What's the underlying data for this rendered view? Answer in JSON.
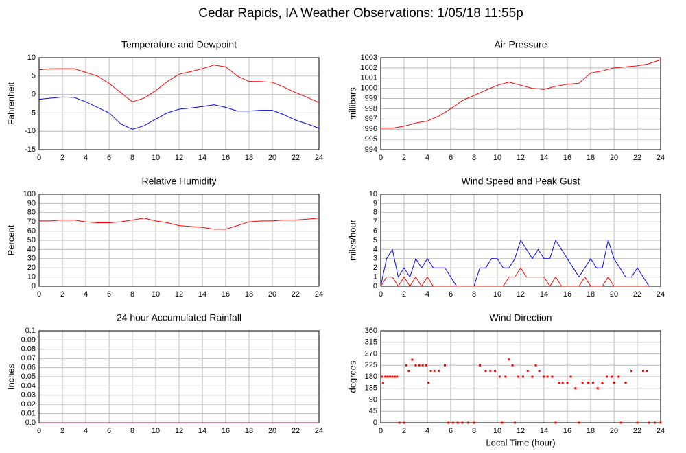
{
  "title": "Cedar Rapids, IA Weather Observations: 1/05/18 11:55p",
  "chart_data": [
    {
      "type": "line",
      "title": "Temperature and Dewpoint",
      "ylabel": "Fahrenheit",
      "x": [
        0,
        1,
        2,
        3,
        4,
        5,
        6,
        7,
        8,
        9,
        10,
        11,
        12,
        13,
        14,
        15,
        16,
        17,
        18,
        19,
        20,
        21,
        22,
        23,
        24
      ],
      "series": [
        {
          "name": "Temperature",
          "color": "#ff0000",
          "values": [
            6.7,
            7,
            7,
            7,
            6,
            5,
            3,
            0.5,
            -2,
            -1,
            1,
            3.5,
            5.5,
            6.2,
            7,
            8,
            7.5,
            5,
            3.5,
            3.5,
            3.3,
            2,
            0.5,
            -0.8,
            -2.2
          ]
        },
        {
          "name": "Dewpoint",
          "color": "#0000ff",
          "values": [
            -1.3,
            -1,
            -0.7,
            -0.8,
            -2,
            -3.5,
            -5,
            -8,
            -9.5,
            -8.5,
            -6.7,
            -5,
            -4,
            -3.7,
            -3.3,
            -2.8,
            -3.5,
            -4.5,
            -4.5,
            -4.3,
            -4.3,
            -5.5,
            -7,
            -8,
            -9.2
          ]
        }
      ],
      "xlim": [
        0,
        24
      ],
      "xticks": [
        0,
        2,
        4,
        6,
        8,
        10,
        12,
        14,
        16,
        18,
        20,
        22,
        24
      ],
      "ylim": [
        -15,
        10
      ],
      "yticks": [
        -15,
        -10,
        -5,
        0,
        5,
        10
      ],
      "grid": true
    },
    {
      "type": "line",
      "title": "Air Pressure",
      "ylabel": "millibars",
      "x": [
        0,
        1,
        2,
        3,
        4,
        5,
        6,
        7,
        8,
        9,
        10,
        11,
        12,
        13,
        14,
        15,
        16,
        17,
        18,
        19,
        20,
        21,
        22,
        23,
        24
      ],
      "series": [
        {
          "name": "Pressure",
          "color": "#ff0000",
          "values": [
            996.1,
            996.1,
            996.3,
            996.6,
            996.8,
            997.3,
            998,
            998.8,
            999.3,
            999.8,
            1000.3,
            1000.6,
            1000.3,
            1000,
            999.9,
            1000.2,
            1000.4,
            1000.5,
            1001.5,
            1001.7,
            1002,
            1002.1,
            1002.2,
            1002.4,
            1002.8
          ]
        }
      ],
      "xlim": [
        0,
        24
      ],
      "xticks": [
        0,
        2,
        4,
        6,
        8,
        10,
        12,
        14,
        16,
        18,
        20,
        22,
        24
      ],
      "ylim": [
        994,
        1003
      ],
      "yticks": [
        994,
        995,
        996,
        997,
        998,
        999,
        1000,
        1001,
        1002,
        1003
      ],
      "grid": true
    },
    {
      "type": "line",
      "title": "Relative Humidity",
      "ylabel": "Percent",
      "x": [
        0,
        1,
        2,
        3,
        4,
        5,
        6,
        7,
        8,
        9,
        10,
        11,
        12,
        13,
        14,
        15,
        16,
        17,
        18,
        19,
        20,
        21,
        22,
        23,
        24
      ],
      "series": [
        {
          "name": "Humidity",
          "color": "#ff0000",
          "values": [
            71,
            71,
            72,
            72,
            70,
            69,
            69,
            70,
            72,
            74,
            71,
            69,
            66,
            65,
            64,
            62,
            62,
            66,
            70,
            71,
            71,
            72,
            72,
            73,
            74
          ]
        }
      ],
      "xlim": [
        0,
        24
      ],
      "xticks": [
        0,
        2,
        4,
        6,
        8,
        10,
        12,
        14,
        16,
        18,
        20,
        22,
        24
      ],
      "ylim": [
        0,
        100
      ],
      "yticks": [
        0,
        10,
        20,
        30,
        40,
        50,
        60,
        70,
        80,
        90,
        100
      ],
      "grid": true
    },
    {
      "type": "line",
      "title": "Wind Speed and Peak Gust",
      "ylabel": "miles/hour",
      "x": [
        0,
        0.5,
        1,
        1.5,
        2,
        2.5,
        3,
        3.5,
        4,
        4.5,
        5,
        5.5,
        6,
        6.5,
        7,
        7.5,
        8,
        8.5,
        9,
        9.5,
        10,
        10.5,
        11,
        11.5,
        12,
        12.5,
        13,
        13.5,
        14,
        14.5,
        15,
        15.5,
        16,
        16.5,
        17,
        17.5,
        18,
        18.5,
        19,
        19.5,
        20,
        20.5,
        21,
        21.5,
        22,
        22.5,
        23,
        23.5,
        24
      ],
      "series": [
        {
          "name": "Wind Speed",
          "color": "#0000ff",
          "values": [
            0,
            3,
            4,
            1,
            2,
            1,
            3,
            2,
            3,
            2,
            2,
            2,
            1,
            0,
            0,
            0,
            0,
            2,
            2,
            3,
            3,
            2,
            2,
            3,
            5,
            4,
            3,
            4,
            3,
            3,
            5,
            4,
            3,
            2,
            1,
            2,
            3,
            2,
            2,
            5,
            3,
            2,
            1,
            1,
            2,
            1,
            0,
            null,
            null
          ]
        },
        {
          "name": "Peak Gust",
          "color": "#ff0000",
          "values": [
            0,
            1,
            1,
            0,
            1,
            0,
            1,
            0,
            1,
            0,
            0,
            0,
            0,
            0,
            0,
            0,
            0,
            0,
            0,
            0,
            0,
            0,
            1,
            1,
            2,
            1,
            1,
            1,
            1,
            0,
            1,
            0,
            0,
            0,
            0,
            1,
            0,
            0,
            0,
            1,
            0,
            0,
            0,
            0,
            0,
            0,
            0,
            null,
            null
          ]
        }
      ],
      "xlim": [
        0,
        24
      ],
      "xticks": [
        0,
        2,
        4,
        6,
        8,
        10,
        12,
        14,
        16,
        18,
        20,
        22,
        24
      ],
      "ylim": [
        0,
        10
      ],
      "yticks": [
        0,
        1,
        2,
        3,
        4,
        5,
        6,
        7,
        8,
        9,
        10
      ],
      "grid": true
    },
    {
      "type": "line",
      "title": "24 hour Accumulated Rainfall",
      "ylabel": "Inches",
      "x": [
        0,
        24
      ],
      "series": [
        {
          "name": "Rainfall",
          "color": "#cc0066",
          "values": [
            0,
            0
          ]
        }
      ],
      "xlim": [
        0,
        24
      ],
      "xticks": [
        0,
        2,
        4,
        6,
        8,
        10,
        12,
        14,
        16,
        18,
        20,
        22,
        24
      ],
      "ylim": [
        0,
        0.1
      ],
      "yticks": [
        {
          "value": 0,
          "label": "0.0"
        },
        0.01,
        0.02,
        0.03,
        0.04,
        0.05,
        0.06,
        0.07,
        0.08,
        0.09,
        0.1
      ],
      "grid": true
    },
    {
      "type": "scatter",
      "title": "Wind Direction",
      "ylabel": "degrees",
      "xlabel": "Local Time (hour)",
      "x": [
        0.1,
        0.2,
        0.4,
        0.6,
        0.8,
        1,
        1.2,
        1.4,
        1.6,
        2,
        2.2,
        2.4,
        2.7,
        3,
        3.3,
        3.6,
        3.9,
        4.1,
        4.3,
        4.6,
        5,
        5.5,
        5.8,
        6.2,
        6.6,
        7,
        7.5,
        8,
        8.5,
        9,
        9.4,
        9.8,
        10.2,
        10.4,
        10.7,
        11,
        11.3,
        11.5,
        11.8,
        12.2,
        12.6,
        13,
        13.3,
        13.6,
        14,
        14.3,
        14.7,
        15,
        15.3,
        15.6,
        16,
        16.3,
        16.7,
        17,
        17.3,
        17.8,
        18.2,
        18.6,
        19,
        19.4,
        19.8,
        20,
        20.4,
        20.6,
        21,
        21.5,
        22,
        22.5,
        22.8,
        23,
        23.5,
        24
      ],
      "series": [
        {
          "name": "Direction",
          "color": "#ff0000",
          "values": [
            180,
            157,
            180,
            180,
            180,
            180,
            180,
            180,
            0,
            0,
            225,
            203,
            247,
            225,
            225,
            225,
            225,
            157,
            203,
            203,
            203,
            225,
            0,
            0,
            0,
            0,
            0,
            0,
            225,
            203,
            203,
            203,
            180,
            0,
            180,
            248,
            225,
            0,
            180,
            180,
            203,
            180,
            225,
            203,
            180,
            180,
            180,
            0,
            157,
            157,
            157,
            180,
            135,
            0,
            157,
            157,
            157,
            135,
            157,
            180,
            180,
            157,
            180,
            0,
            157,
            203,
            0,
            203,
            203,
            0,
            0,
            0
          ]
        }
      ],
      "xlim": [
        0,
        24
      ],
      "xticks": [
        0,
        2,
        4,
        6,
        8,
        10,
        12,
        14,
        16,
        18,
        20,
        22,
        24
      ],
      "ylim": [
        0,
        360
      ],
      "yticks": [
        0,
        45,
        90,
        135,
        180,
        225,
        270,
        315,
        360
      ],
      "grid": true
    }
  ]
}
